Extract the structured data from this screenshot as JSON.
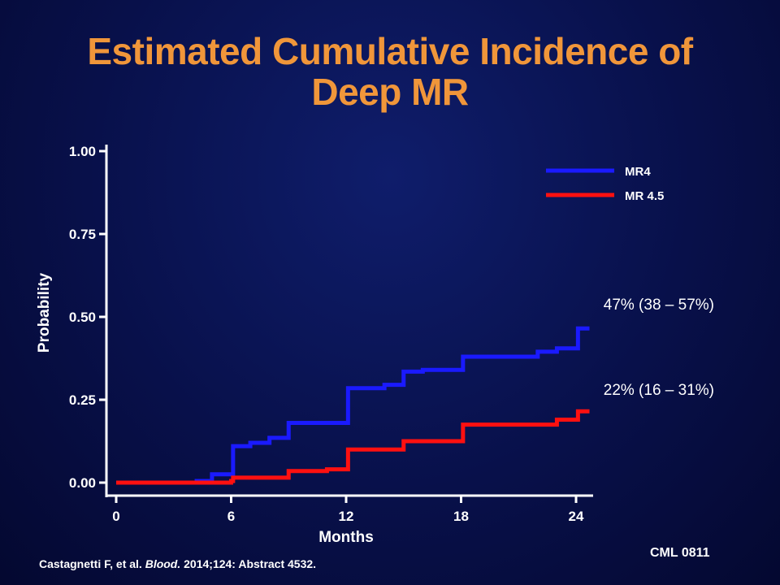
{
  "slide": {
    "title_line1": "Estimated Cumulative Incidence of",
    "title_line2": "Deep MR",
    "citation_authors": "Castagnetti F, et al.",
    "citation_journal": "Blood.",
    "citation_rest": "2014;124: Abstract 4532.",
    "code": "CML 0811"
  },
  "colors": {
    "title": "#f0963a",
    "text": "#ffffff",
    "mr4": "#1a1aff",
    "mr45": "#ff1010"
  },
  "chart_data": {
    "type": "line",
    "step": true,
    "title": "Estimated Cumulative Incidence of Deep MR",
    "xlabel": "Months",
    "ylabel": "Probability",
    "xlim": [
      0,
      24.7
    ],
    "ylim": [
      0,
      1
    ],
    "xticks": [
      0,
      6,
      12,
      18,
      24
    ],
    "yticks": [
      0.0,
      0.25,
      0.5,
      0.75,
      1.0
    ],
    "ytick_labels": [
      "0.00",
      "0.25",
      "0.50",
      "0.75",
      "1.00"
    ],
    "legend_position": "top-right",
    "grid": false,
    "series": [
      {
        "name": "MR4",
        "color": "#1a1aff",
        "points": [
          [
            0,
            0
          ],
          [
            3,
            0
          ],
          [
            4.2,
            0.005
          ],
          [
            5,
            0.025
          ],
          [
            6,
            0.025
          ],
          [
            6.1,
            0.11
          ],
          [
            7,
            0.12
          ],
          [
            8,
            0.135
          ],
          [
            9,
            0.18
          ],
          [
            12,
            0.18
          ],
          [
            12.1,
            0.285
          ],
          [
            14,
            0.295
          ],
          [
            15,
            0.335
          ],
          [
            16,
            0.34
          ],
          [
            18,
            0.34
          ],
          [
            18.1,
            0.38
          ],
          [
            22,
            0.395
          ],
          [
            23,
            0.405
          ],
          [
            24,
            0.405
          ],
          [
            24.1,
            0.465
          ],
          [
            24.7,
            0.465
          ]
        ],
        "annotation": "47% (38 – 57%)"
      },
      {
        "name": "MR 4.5",
        "color": "#ff1010",
        "points": [
          [
            0,
            0
          ],
          [
            5,
            0
          ],
          [
            6,
            0.005
          ],
          [
            6.1,
            0.015
          ],
          [
            9,
            0.035
          ],
          [
            11,
            0.04
          ],
          [
            12,
            0.04
          ],
          [
            12.1,
            0.1
          ],
          [
            15,
            0.125
          ],
          [
            18,
            0.125
          ],
          [
            18.1,
            0.175
          ],
          [
            23,
            0.19
          ],
          [
            24,
            0.19
          ],
          [
            24.1,
            0.215
          ],
          [
            24.7,
            0.215
          ]
        ],
        "annotation": "22% (16 – 31%)"
      }
    ]
  }
}
